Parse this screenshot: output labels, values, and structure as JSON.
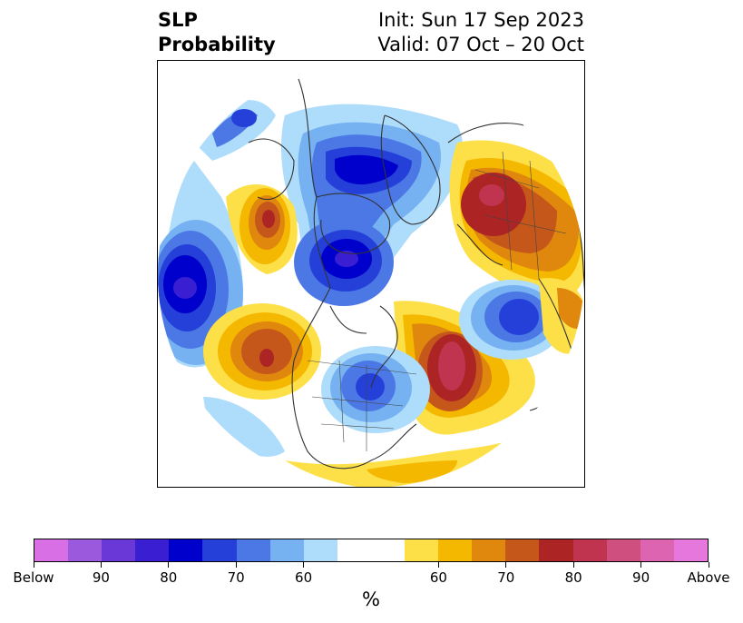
{
  "title": {
    "left_line1": "SLP",
    "left_line2": "Probability",
    "right_line1": "Init: Sun 17 Sep 2023",
    "right_line2": "Valid: 07 Oct – 20 Oct"
  },
  "map": {
    "projection": "north-polar-stereographic",
    "anomalies": [
      {
        "region": "Gulf of Alaska / NE Pacific",
        "category": "below",
        "level": "80-85"
      },
      {
        "region": "Greenland / Arctic",
        "category": "below",
        "level": "80-85"
      },
      {
        "region": "Hudson Bay",
        "category": "below",
        "level": "80-85"
      },
      {
        "region": "NW Siberia",
        "category": "above",
        "level": "75-80"
      },
      {
        "region": "Western Canada / Pacific NW",
        "category": "above",
        "level": "75-80"
      },
      {
        "region": "Central North Pacific",
        "category": "above",
        "level": "75-80"
      },
      {
        "region": "Central North Atlantic",
        "category": "above",
        "level": "80-85"
      },
      {
        "region": "NE Atlantic / Northern Europe",
        "category": "below",
        "level": "75-80"
      },
      {
        "region": "Southwest United States",
        "category": "below",
        "level": "70-75"
      }
    ]
  },
  "colorbar": {
    "unit": "%",
    "colors": [
      "#d86fe4",
      "#9b59dd",
      "#6a38d6",
      "#3a1fd2",
      "#0000cc",
      "#2440d8",
      "#4c78e6",
      "#76b2f2",
      "#aedcfb",
      "#ffffff",
      "#ffffff",
      "#fde048",
      "#f5b800",
      "#e0880e",
      "#c5571b",
      "#ad2424",
      "#c0344f",
      "#cf4f7e",
      "#dd64b0",
      "#e677dd"
    ],
    "tick_labels": [
      "Below",
      "90",
      "80",
      "70",
      "60",
      "60",
      "70",
      "80",
      "90",
      "Above"
    ]
  }
}
